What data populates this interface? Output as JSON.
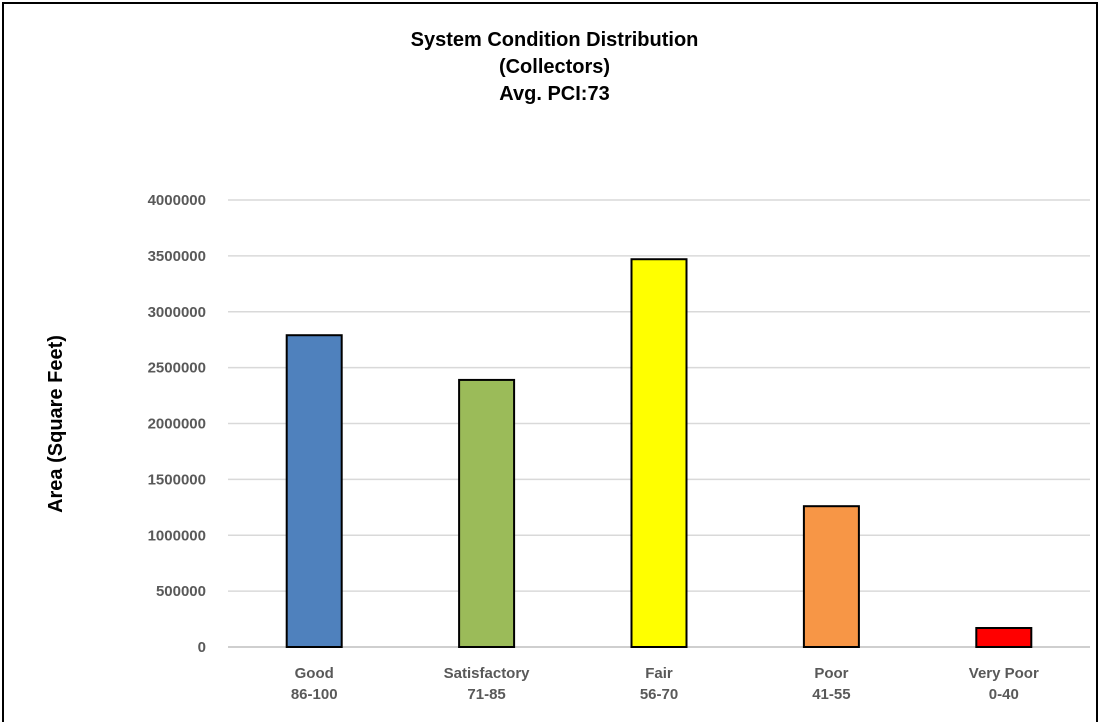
{
  "chart_data": {
    "type": "bar",
    "title": "System Condition Distribution",
    "subtitle": "(Collectors)",
    "subtitle2": "Avg. PCI:73",
    "xlabel": "",
    "ylabel": "Area (Square Feet)",
    "ylim": [
      0,
      4000000
    ],
    "yticks": [
      "0",
      "500000",
      "1000000",
      "1500000",
      "2000000",
      "2500000",
      "3000000",
      "3500000",
      "4000000"
    ],
    "categories": [
      {
        "name": "Good",
        "range": "86-100"
      },
      {
        "name": "Satisfactory",
        "range": "71-85"
      },
      {
        "name": "Fair",
        "range": "56-70"
      },
      {
        "name": "Poor",
        "range": "41-55"
      },
      {
        "name": "Very Poor",
        "range": "0-40"
      }
    ],
    "values": [
      2790000,
      2390000,
      3470000,
      1260000,
      170000
    ],
    "colors": [
      "#4f81bd",
      "#9bbb59",
      "#ffff00",
      "#f79646",
      "#ff0000"
    ],
    "grid": true
  }
}
